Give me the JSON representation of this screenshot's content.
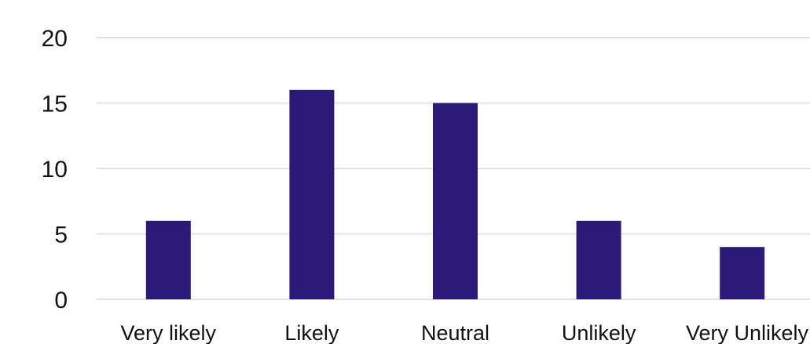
{
  "chart_data": {
    "type": "bar",
    "title": "",
    "xlabel": "",
    "ylabel": "",
    "categories": [
      "Very likely",
      "Likely",
      "Neutral",
      "Unlikely",
      "Very Unlikely"
    ],
    "values": [
      6,
      16,
      15,
      6,
      4
    ],
    "ylim": [
      0,
      20
    ],
    "yticks": [
      "0",
      "5",
      "10",
      "15",
      "20"
    ],
    "grid": true,
    "legend": "none",
    "bar_color": "#2b1a78"
  }
}
